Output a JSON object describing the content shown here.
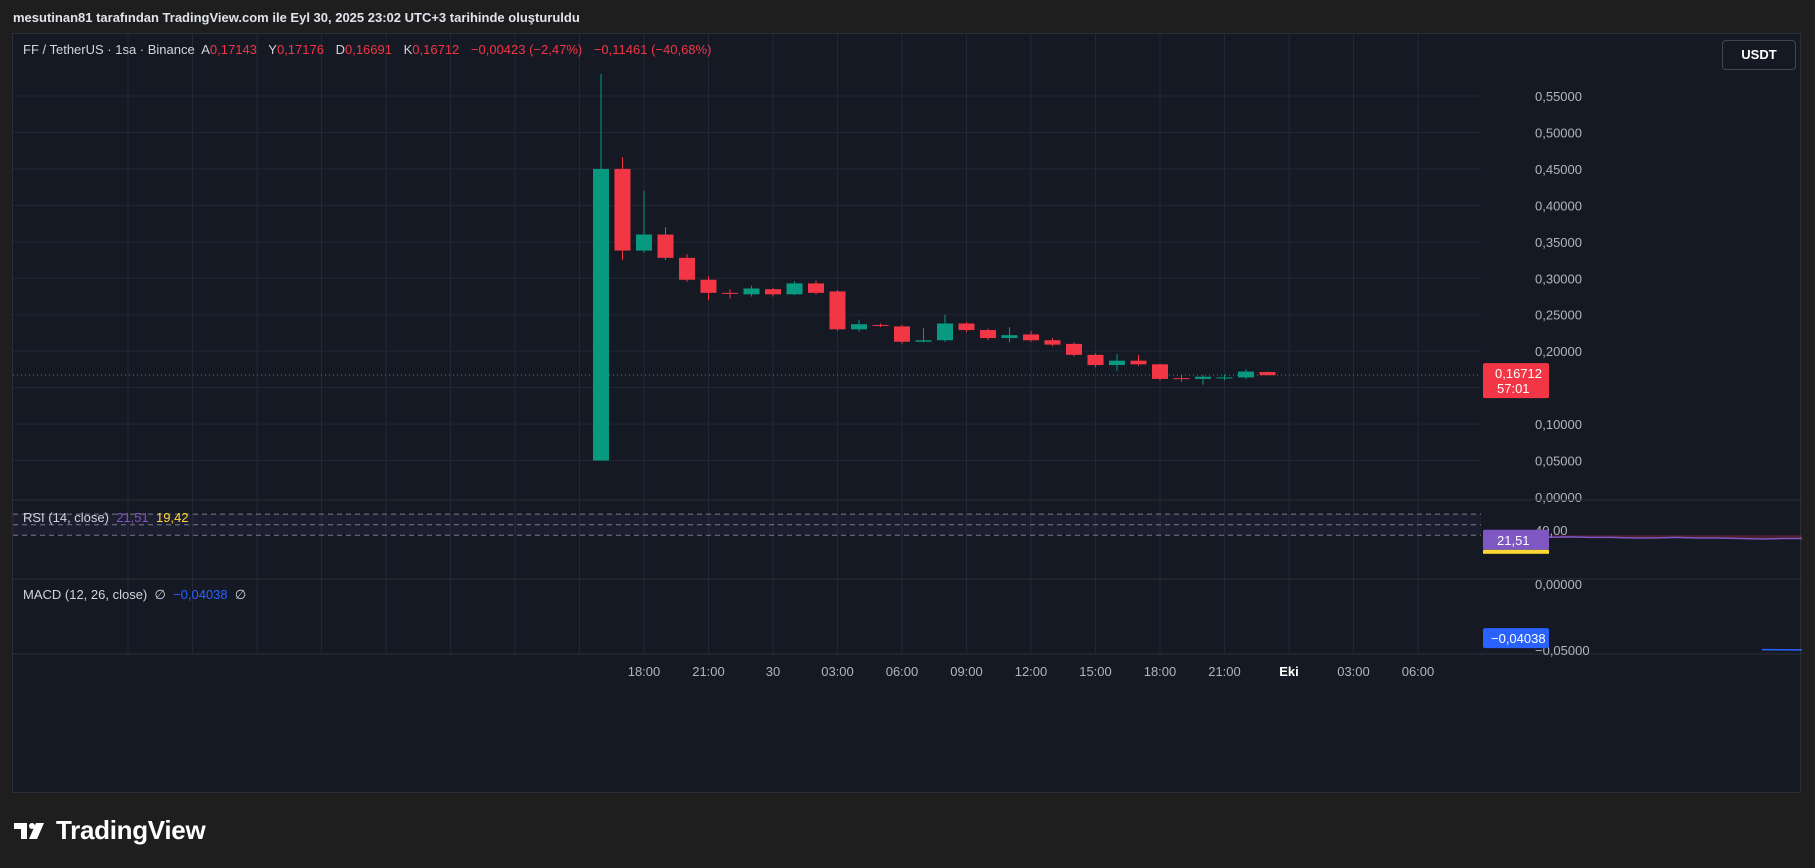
{
  "attribution": "mesutinan81 tarafından TradingView.com ile Eyl 30, 2025 23:02 UTC+3 tarihinde oluşturuldu",
  "legend": {
    "symbol": "FF / TetherUS · 1sa · Binance",
    "open_label": "A",
    "open": "0,17143",
    "high_label": "Y",
    "high": "0,17176",
    "low_label": "D",
    "low": "0,16691",
    "close_label": "K",
    "close": "0,16712",
    "change": "−0,00423 (−2,47%)",
    "change2": "−0,11461 (−40,68%)"
  },
  "currency_button": "USDT",
  "price_axis": {
    "labels": [
      "0,55000",
      "0,50000",
      "0,45000",
      "0,40000",
      "0,35000",
      "0,30000",
      "0,25000",
      "0,20000",
      "0,10000",
      "0,05000",
      "0,00000"
    ]
  },
  "last_price": {
    "value": "0,16712",
    "countdown": "57:01"
  },
  "time_axis": {
    "labels": [
      "18:00",
      "21:00",
      "30",
      "03:00",
      "06:00",
      "09:00",
      "12:00",
      "15:00",
      "18:00",
      "21:00",
      "Eki",
      "03:00",
      "06:00"
    ]
  },
  "rsi": {
    "title": "RSI (14, close)",
    "value": "21,51",
    "ma_value": "19,42",
    "axis_label": "40,00",
    "badge": "21,51",
    "line": [
      [
        42,
        28
      ],
      [
        43,
        25
      ],
      [
        44,
        26
      ],
      [
        45,
        27
      ],
      [
        46,
        26
      ],
      [
        47,
        26
      ],
      [
        48,
        25
      ],
      [
        49,
        25
      ],
      [
        50,
        26
      ],
      [
        51,
        25
      ],
      [
        52,
        25
      ],
      [
        53,
        24
      ],
      [
        54,
        23
      ],
      [
        55,
        24
      ],
      [
        56,
        24
      ],
      [
        57,
        23
      ],
      [
        58,
        22
      ],
      [
        59,
        21
      ],
      [
        60,
        22
      ],
      [
        61,
        22
      ],
      [
        62,
        22
      ],
      [
        63,
        21
      ],
      [
        64,
        21
      ],
      [
        65,
        21
      ],
      [
        66,
        21
      ]
    ],
    "ma": [
      [
        59,
        21
      ],
      [
        60,
        21
      ],
      [
        61,
        21
      ],
      [
        62,
        21
      ],
      [
        63,
        21
      ],
      [
        64,
        20
      ],
      [
        65,
        19
      ],
      [
        66,
        19
      ]
    ]
  },
  "macd": {
    "title": "MACD (12, 26, close)",
    "placeholder1": "∅",
    "value": "−0,04038",
    "placeholder2": "∅",
    "axis_top": "0,00000",
    "axis_bottom": "−0,05000",
    "badge": "−0,04038",
    "line": [
      [
        54,
        -0.049
      ],
      [
        56,
        -0.0492
      ],
      [
        58,
        -0.049
      ],
      [
        60,
        -0.048
      ],
      [
        62,
        -0.046
      ],
      [
        64,
        -0.0435
      ],
      [
        66,
        -0.0404
      ]
    ]
  },
  "chart_data": {
    "type": "candlestick",
    "symbol": "FF / TetherUS",
    "interval": "1sa",
    "candles": [
      {
        "i": 0,
        "o": 0.05,
        "h": 0.58,
        "l": 0.05,
        "c": 0.45
      },
      {
        "i": 1,
        "o": 0.45,
        "h": 0.466,
        "l": 0.325,
        "c": 0.338
      },
      {
        "i": 2,
        "o": 0.338,
        "h": 0.42,
        "l": 0.335,
        "c": 0.36
      },
      {
        "i": 3,
        "o": 0.36,
        "h": 0.37,
        "l": 0.325,
        "c": 0.328
      },
      {
        "i": 4,
        "o": 0.328,
        "h": 0.333,
        "l": 0.295,
        "c": 0.298
      },
      {
        "i": 5,
        "o": 0.298,
        "h": 0.303,
        "l": 0.27,
        "c": 0.28
      },
      {
        "i": 6,
        "o": 0.28,
        "h": 0.285,
        "l": 0.272,
        "c": 0.279
      },
      {
        "i": 7,
        "o": 0.278,
        "h": 0.29,
        "l": 0.275,
        "c": 0.286
      },
      {
        "i": 8,
        "o": 0.285,
        "h": 0.287,
        "l": 0.275,
        "c": 0.278
      },
      {
        "i": 9,
        "o": 0.278,
        "h": 0.296,
        "l": 0.277,
        "c": 0.293
      },
      {
        "i": 10,
        "o": 0.293,
        "h": 0.297,
        "l": 0.278,
        "c": 0.28
      },
      {
        "i": 11,
        "o": 0.282,
        "h": 0.284,
        "l": 0.228,
        "c": 0.23
      },
      {
        "i": 12,
        "o": 0.23,
        "h": 0.243,
        "l": 0.227,
        "c": 0.237
      },
      {
        "i": 13,
        "o": 0.236,
        "h": 0.238,
        "l": 0.233,
        "c": 0.235
      },
      {
        "i": 14,
        "o": 0.234,
        "h": 0.236,
        "l": 0.21,
        "c": 0.213
      },
      {
        "i": 15,
        "o": 0.213,
        "h": 0.232,
        "l": 0.212,
        "c": 0.215
      },
      {
        "i": 16,
        "o": 0.215,
        "h": 0.25,
        "l": 0.213,
        "c": 0.238
      },
      {
        "i": 17,
        "o": 0.238,
        "h": 0.24,
        "l": 0.226,
        "c": 0.229
      },
      {
        "i": 18,
        "o": 0.229,
        "h": 0.231,
        "l": 0.215,
        "c": 0.218
      },
      {
        "i": 19,
        "o": 0.218,
        "h": 0.233,
        "l": 0.212,
        "c": 0.222
      },
      {
        "i": 20,
        "o": 0.223,
        "h": 0.228,
        "l": 0.213,
        "c": 0.215
      },
      {
        "i": 21,
        "o": 0.215,
        "h": 0.218,
        "l": 0.207,
        "c": 0.209
      },
      {
        "i": 22,
        "o": 0.21,
        "h": 0.212,
        "l": 0.193,
        "c": 0.195
      },
      {
        "i": 23,
        "o": 0.195,
        "h": 0.197,
        "l": 0.178,
        "c": 0.181
      },
      {
        "i": 24,
        "o": 0.181,
        "h": 0.196,
        "l": 0.173,
        "c": 0.187
      },
      {
        "i": 25,
        "o": 0.187,
        "h": 0.195,
        "l": 0.18,
        "c": 0.182
      },
      {
        "i": 26,
        "o": 0.182,
        "h": 0.183,
        "l": 0.16,
        "c": 0.162
      },
      {
        "i": 27,
        "o": 0.163,
        "h": 0.168,
        "l": 0.158,
        "c": 0.162
      },
      {
        "i": 28,
        "o": 0.162,
        "h": 0.167,
        "l": 0.154,
        "c": 0.165
      },
      {
        "i": 29,
        "o": 0.163,
        "h": 0.168,
        "l": 0.16,
        "c": 0.164
      },
      {
        "i": 30,
        "o": 0.164,
        "h": 0.175,
        "l": 0.162,
        "c": 0.172
      },
      {
        "i": 31,
        "o": 0.17143,
        "h": 0.17176,
        "l": 0.16691,
        "c": 0.16712
      }
    ],
    "ylim": [
      0,
      0.58
    ],
    "xrange": [
      -22,
      58
    ],
    "grid": true,
    "colors": {
      "up": "#089981",
      "down": "#f23645",
      "rsi": "#7e57c2",
      "rsi_ma": "#fdd835",
      "macd": "#2962ff"
    }
  }
}
